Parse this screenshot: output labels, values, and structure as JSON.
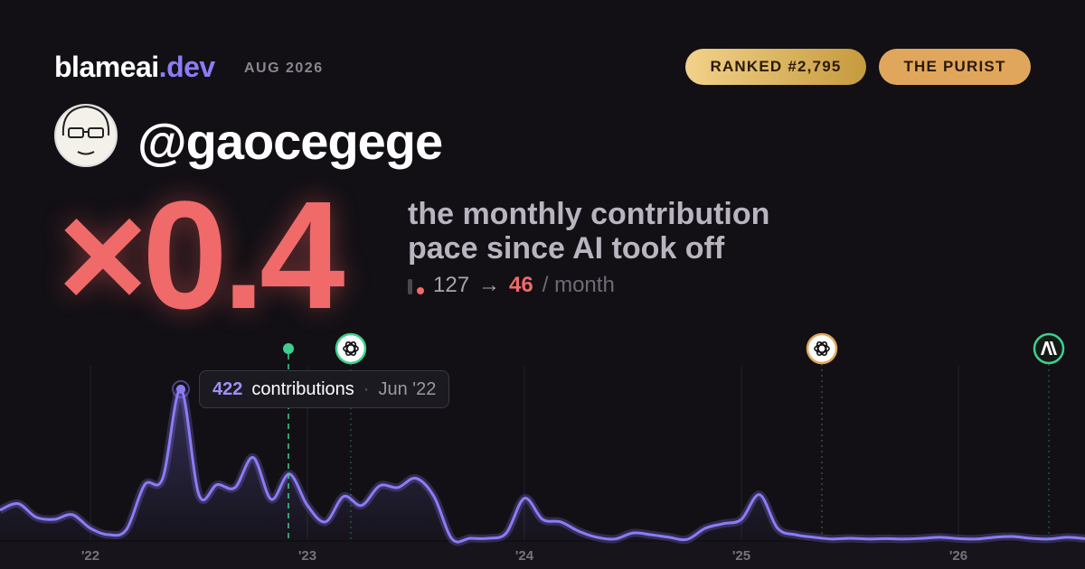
{
  "header": {
    "brand": "blameai",
    "brand_tld": ".dev",
    "date": "AUG 2026",
    "badges": [
      "RANKED #2,795",
      "THE PURIST"
    ]
  },
  "profile": {
    "handle": "@gaocegege"
  },
  "headline": {
    "multiplier": "×0.4",
    "caption_lines": [
      "the monthly contribution",
      "pace since AI took off"
    ],
    "before": "127",
    "arrow": "→",
    "after": "46",
    "unit": "/ month"
  },
  "tooltip": {
    "label": "contributions",
    "date": "Jun '22"
  },
  "chart_data": {
    "type": "line",
    "categories": [
      null,
      null,
      null,
      null,
      null,
      "'22",
      null,
      null,
      null,
      null,
      null,
      null,
      null,
      null,
      null,
      null,
      null,
      "'23",
      null,
      null,
      null,
      null,
      null,
      null,
      null,
      null,
      null,
      null,
      null,
      "'24",
      null,
      null,
      null,
      null,
      null,
      null,
      null,
      null,
      null,
      null,
      null,
      "'25",
      null,
      null,
      null,
      null,
      null,
      null,
      null,
      null,
      null,
      null,
      null,
      "'26",
      null,
      null,
      null,
      null,
      null,
      null,
      null
    ],
    "series": [
      {
        "name": "contributions",
        "color": "#8b7cf6",
        "values": [
          84,
          102,
          64,
          58,
          71,
          33,
          15,
          30,
          155,
          173,
          422,
          127,
          155,
          147,
          231,
          114,
          185,
          97,
          51,
          122,
          97,
          152,
          147,
          173,
          122,
          3,
          5,
          5,
          20,
          117,
          58,
          51,
          25,
          8,
          3,
          20,
          15,
          8,
          2,
          33,
          46,
          58,
          127,
          33,
          15,
          8,
          3,
          5,
          3,
          4,
          3,
          5,
          8,
          4,
          3,
          8,
          10,
          5,
          3,
          8,
          4
        ]
      }
    ],
    "ylim": [
      0,
      500
    ],
    "grid": true
  }
}
